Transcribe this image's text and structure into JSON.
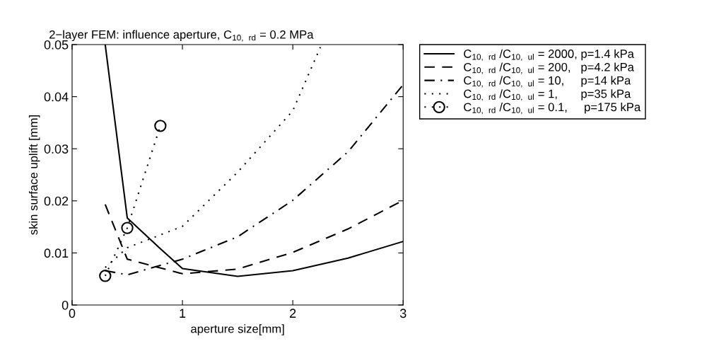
{
  "chart_data": {
    "type": "line",
    "title": "2−layer FEM: influence aperture, C$_{10, rd}$ = 0.2 MPa",
    "xlabel": "aperture size[mm]",
    "ylabel": "skin surface uplift [mm]",
    "xlim": [
      0,
      3
    ],
    "ylim": [
      0,
      0.05
    ],
    "xticks": [
      0,
      1,
      2,
      3
    ],
    "yticks": [
      0,
      0.01,
      0.02,
      0.03,
      0.04,
      0.05
    ],
    "grid": false,
    "legend": "right",
    "series": [
      {
        "name": "C$_{10, rd}$ /C$_{10, ul}$ = 2000, p=1.4 kPa",
        "color": "#000000",
        "line_style": "solid",
        "marker": "none",
        "x": [
          0.3,
          0.5,
          0.8,
          1,
          1.5,
          2,
          2.5,
          3
        ],
        "values": [
          0.05,
          0.0167,
          0.0108,
          0.007,
          0.0055,
          0.0066,
          0.009,
          0.0122
        ]
      },
      {
        "name": "C$_{10, rd}$ /C$_{10, ul}$ = 200,   p=4.2 kPa",
        "color": "#000000",
        "line_style": "dashed",
        "marker": "none",
        "x": [
          0.3,
          0.5,
          1,
          1.5,
          2,
          2.5,
          3
        ],
        "values": [
          0.0193,
          0.0088,
          0.006,
          0.0069,
          0.0101,
          0.0146,
          0.0201
        ]
      },
      {
        "name": "C$_{10, rd}$ /C$_{10, ul}$ = 10,     p=14 kPa",
        "color": "#000000",
        "line_style": "dashdot",
        "marker": "none",
        "x": [
          0.3,
          0.5,
          1,
          1.5,
          2,
          2.5,
          3
        ],
        "values": [
          0.0066,
          0.0058,
          0.0088,
          0.0131,
          0.0201,
          0.0294,
          0.0423
        ]
      },
      {
        "name": "C$_{10, rd}$ /C$_{10, ul}$ = 1,       p=35 kPa",
        "color": "#000000",
        "line_style": "dotted",
        "marker": "none",
        "x": [
          0.3,
          0.5,
          1,
          1.5,
          2,
          2.25
        ],
        "values": [
          0.0072,
          0.011,
          0.0151,
          0.0255,
          0.0373,
          0.0495
        ]
      },
      {
        "name": "C$_{10, rd}$ /C$_{10, ul}$ = 0.1,     p=175 kPa",
        "color": "#000000",
        "line_style": "dotted",
        "marker": "circle",
        "x": [
          0.3,
          0.5,
          0.8
        ],
        "values": [
          0.0056,
          0.0148,
          0.0344
        ]
      }
    ]
  }
}
